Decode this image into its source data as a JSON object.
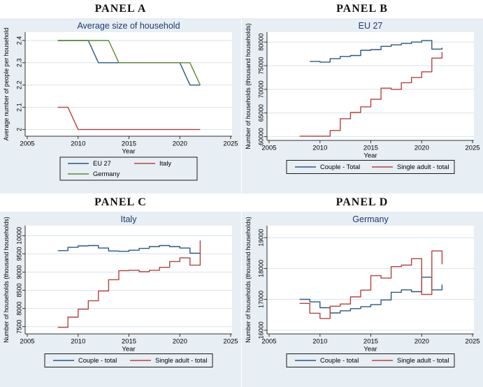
{
  "colors": {
    "chart_bg": "#e7eef4",
    "plot_bg": "#ffffff",
    "gridline": "#d7e3ee",
    "axis": "#333333",
    "text": "#000000",
    "title": "#1e3a6e",
    "navy": "#2a5783",
    "red": "#b5433f",
    "green": "#5f8a32"
  },
  "chart_data": [
    {
      "type": "line",
      "panel_label": "PANEL A",
      "title": "Average size of household",
      "xlabel": "Year",
      "ylabel": "Average number of people per household",
      "xlim": [
        2005,
        2025
      ],
      "xticks": [
        2005,
        2010,
        2015,
        2020,
        2025
      ],
      "ylim": [
        1.97,
        2.425
      ],
      "yticks": [
        2,
        2.1,
        2.2,
        2.3,
        2.4
      ],
      "ytick_labels": [
        "2",
        "2.1",
        "2.2",
        "2.3",
        "2.4"
      ],
      "grid": true,
      "connect": "direct",
      "legend_position": "bottom",
      "legend_rows": [
        [
          {
            "label": "EU 27",
            "color": "#2a5783"
          },
          {
            "label": "Italy",
            "color": "#b5433f"
          }
        ],
        [
          {
            "label": "Germany",
            "color": "#5f8a32"
          }
        ]
      ],
      "series": [
        {
          "name": "EU 27",
          "color": "#2a5783",
          "start_year": 2008,
          "values": [
            2.4,
            2.4,
            2.4,
            2.4,
            2.3,
            2.3,
            2.3,
            2.3,
            2.3,
            2.3,
            2.3,
            2.3,
            2.3,
            2.2,
            2.2
          ]
        },
        {
          "name": "Germany",
          "color": "#5f8a32",
          "start_year": 2008,
          "values": [
            2.4,
            2.4,
            2.4,
            2.4,
            2.4,
            2.4,
            2.3,
            2.3,
            2.3,
            2.3,
            2.3,
            2.3,
            2.3,
            2.3,
            2.2
          ]
        },
        {
          "name": "Italy",
          "color": "#b5433f",
          "start_year": 2008,
          "values": [
            2.1,
            2.1,
            2.0,
            2.0,
            2.0,
            2.0,
            2.0,
            2.0,
            2.0,
            2.0,
            2.0,
            2.0,
            2.0,
            2.0,
            2.0
          ]
        }
      ]
    },
    {
      "type": "line",
      "panel_label": "PANEL B",
      "title": "EU 27",
      "xlabel": "Year",
      "ylabel": "Number of households (thousand households)",
      "xlim": [
        2005,
        2025
      ],
      "xticks": [
        2005,
        2010,
        2015,
        2020,
        2025
      ],
      "ylim": [
        59200,
        81500
      ],
      "yticks": [
        60000,
        65000,
        70000,
        75000,
        80000
      ],
      "ytick_labels": [
        "60000",
        "65000",
        "70000",
        "75000",
        "80000"
      ],
      "grid": true,
      "connect": "step",
      "legend_position": "bottom",
      "legend_rows": [
        [
          {
            "label": "Couple - Total",
            "color": "#2a5783"
          },
          {
            "label": "Single adult - total",
            "color": "#b5433f"
          }
        ]
      ],
      "series": [
        {
          "name": "Couple - Total",
          "color": "#2a5783",
          "start_year": 2009,
          "values": [
            75900,
            75750,
            76500,
            76950,
            77150,
            78250,
            78400,
            79100,
            79400,
            79700,
            80000,
            80300,
            78500,
            78800
          ]
        },
        {
          "name": "Single adult - total",
          "color": "#b5433f",
          "start_year": 2008,
          "values": [
            60100,
            60100,
            60100,
            61300,
            63800,
            65100,
            66300,
            67900,
            70250,
            70000,
            71400,
            72500,
            73700,
            76600,
            77900
          ]
        }
      ]
    },
    {
      "type": "line",
      "panel_label": "PANEL C",
      "title": "Italy",
      "xlabel": "Year",
      "ylabel": "Number of households (thousand households)",
      "xlim": [
        2005,
        2025
      ],
      "xticks": [
        2005,
        2010,
        2015,
        2020,
        2025
      ],
      "ylim": [
        7300,
        10200
      ],
      "yticks": [
        7500,
        8000,
        8500,
        9000,
        9500,
        10000
      ],
      "ytick_labels": [
        "7500",
        "8000",
        "8500",
        "9000",
        "9500",
        "10000"
      ],
      "grid": true,
      "connect": "step",
      "legend_position": "bottom",
      "legend_rows": [
        [
          {
            "label": "Couple - total",
            "color": "#2a5783"
          },
          {
            "label": "Single adult - total",
            "color": "#b5433f"
          }
        ]
      ],
      "series": [
        {
          "name": "Couple - total",
          "color": "#2a5783",
          "start_year": 2008,
          "values": [
            9590,
            9680,
            9720,
            9730,
            9660,
            9580,
            9570,
            9600,
            9650,
            9700,
            9730,
            9700,
            9660,
            9520,
            9510
          ]
        },
        {
          "name": "Single adult - total",
          "color": "#b5433f",
          "start_year": 2008,
          "values": [
            7480,
            7760,
            7980,
            8210,
            8480,
            8790,
            9040,
            9050,
            9010,
            9050,
            9130,
            9290,
            9390,
            9190,
            9870
          ]
        }
      ]
    },
    {
      "type": "line",
      "panel_label": "PANEL D",
      "title": "Germany",
      "xlabel": "Year",
      "ylabel": "Number of households (thousand households)",
      "xlim": [
        2005,
        2025
      ],
      "xticks": [
        2005,
        2010,
        2015,
        2020,
        2025
      ],
      "ylim": [
        15880,
        19300
      ],
      "yticks": [
        16000,
        17000,
        18000,
        19000
      ],
      "ytick_labels": [
        "16000",
        "17000",
        "18000",
        "19000"
      ],
      "grid": true,
      "connect": "step",
      "legend_position": "bottom",
      "legend_rows": [
        [
          {
            "label": "Couple - total",
            "color": "#2a5783"
          },
          {
            "label": "Single adult - total",
            "color": "#b5433f"
          }
        ]
      ],
      "series": [
        {
          "name": "Couple - total",
          "color": "#2a5783",
          "start_year": 2008,
          "values": [
            17000,
            16920,
            16730,
            16560,
            16630,
            16700,
            16760,
            16830,
            16980,
            17230,
            17310,
            17250,
            17720,
            17310,
            17480
          ]
        },
        {
          "name": "Single adult - total",
          "color": "#b5433f",
          "start_year": 2008,
          "values": [
            16870,
            16550,
            16380,
            16780,
            16850,
            17080,
            17300,
            17770,
            17690,
            18060,
            18110,
            18320,
            17160,
            18570,
            18140
          ]
        }
      ]
    }
  ]
}
